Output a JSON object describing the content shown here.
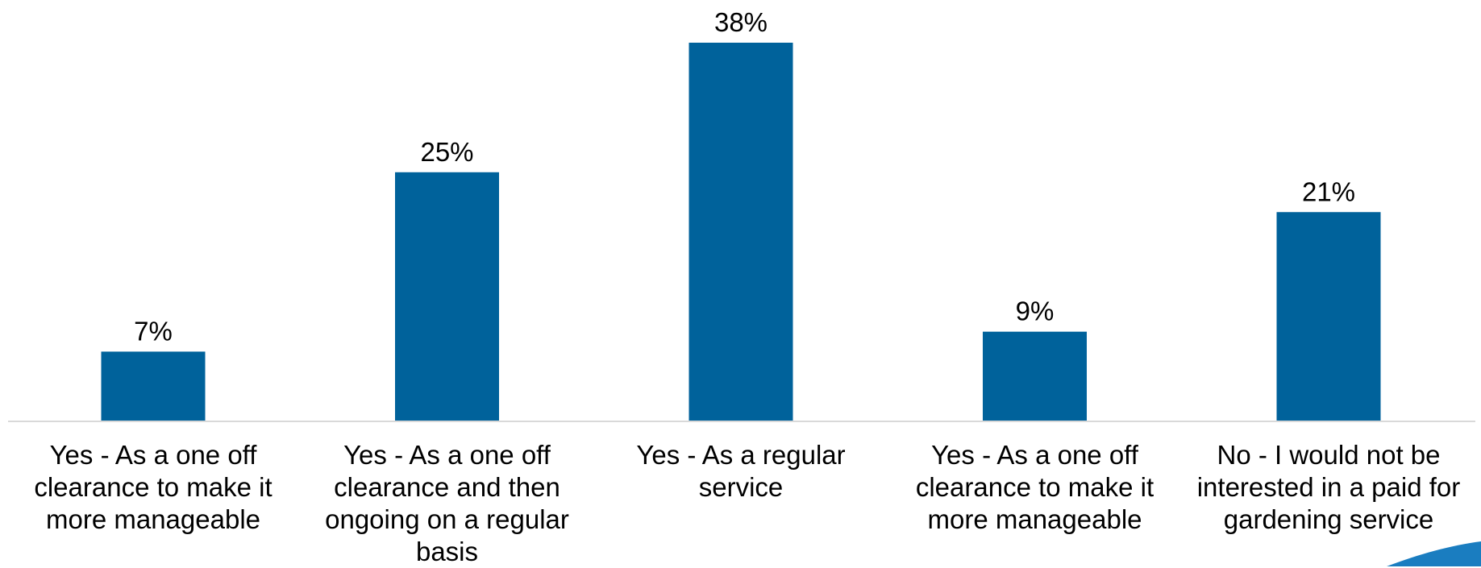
{
  "chart_data": {
    "type": "bar",
    "categories": [
      [
        "Yes - As a one off",
        "clearance to make it",
        "more manageable"
      ],
      [
        "Yes - As a one off",
        "clearance and then",
        "ongoing on a regular",
        "basis"
      ],
      [
        "Yes - As a regular",
        "service"
      ],
      [
        "Yes - As a one off",
        "clearance to make it",
        "more manageable"
      ],
      [
        "No - I would not be",
        "interested in a paid for",
        "gardening service"
      ]
    ],
    "values": [
      7,
      25,
      38,
      9,
      21
    ],
    "value_labels": [
      "7%",
      "25%",
      "38%",
      "9%",
      "21%"
    ],
    "title": "",
    "xlabel": "",
    "ylabel": "",
    "ylim": [
      0,
      38
    ],
    "grid": false,
    "legend": "none",
    "bar_color": "#00629B",
    "axis_color": "#D9D9D9",
    "accent_shape_color": "#1A7DC0"
  }
}
